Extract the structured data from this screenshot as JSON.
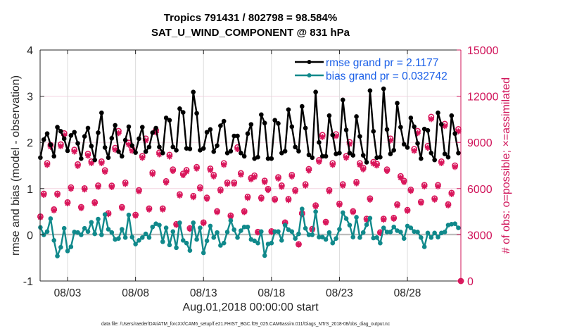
{
  "chart_data": {
    "type": "line",
    "title": "Tropics 791431 / 802798 = 98.584%",
    "subtitle": "SAT_U_WIND_COMPONENT @ 831 hPa",
    "xlabel": "Aug.01,2018 00:00:00 start",
    "ylabel": "rmse and bias (model - observation)",
    "ylabel_right": "# of obs: o=possible; ×=assimilated",
    "ylim": [
      -1,
      4
    ],
    "ylim_right": [
      0,
      15000
    ],
    "xlim_days": [
      0,
      31
    ],
    "time_start": "Aug.01,2018 00:00:00",
    "time_step_hours": 6,
    "grid": true,
    "zero_line": 0,
    "legend_position": "top-right",
    "yticks": [
      "-1",
      "0",
      "1",
      "2",
      "3",
      "4"
    ],
    "yticks_right": [
      "0",
      "3000",
      "6000",
      "9000",
      "12000",
      "15000"
    ],
    "xticks": [
      {
        "label": "08/03",
        "day": 2
      },
      {
        "label": "08/08",
        "day": 7
      },
      {
        "label": "08/13",
        "day": 12
      },
      {
        "label": "08/18",
        "day": 17
      },
      {
        "label": "08/23",
        "day": 22
      },
      {
        "label": "08/28",
        "day": 27
      }
    ],
    "series": [
      {
        "name": "rmse",
        "legend": "rmse grand pr = 2.1177",
        "axis": "left",
        "color": "#000000",
        "marker": "filled-circle",
        "values": [
          1.67,
          2.06,
          2.19,
          1.95,
          1.7,
          2.33,
          2.24,
          2.08,
          1.82,
          2.15,
          2.22,
          1.98,
          1.65,
          2.13,
          2.31,
          1.92,
          1.62,
          2.21,
          2.64,
          1.89,
          1.67,
          2.09,
          2.37,
          1.8,
          1.7,
          2.05,
          2.34,
          1.93,
          1.78,
          2.08,
          2.33,
          1.8,
          1.9,
          2.21,
          2.31,
          1.9,
          1.77,
          2.53,
          2.48,
          1.9,
          1.83,
          2.73,
          2.65,
          1.87,
          1.86,
          3.09,
          2.63,
          1.83,
          1.87,
          2.22,
          2.28,
          1.8,
          1.93,
          2.36,
          2.46,
          1.77,
          1.81,
          2.14,
          2.14,
          1.77,
          1.7,
          2.19,
          2.39,
          1.65,
          1.68,
          2.6,
          2.42,
          1.65,
          1.65,
          2.48,
          2.41,
          1.77,
          1.81,
          2.71,
          2.34,
          1.9,
          1.81,
          2.78,
          2.31,
          1.73,
          1.67,
          3.09,
          2.0,
          1.7,
          1.7,
          2.58,
          2.16,
          1.75,
          1.77,
          2.92,
          2.27,
          1.77,
          1.72,
          2.56,
          2.13,
          1.72,
          1.57,
          3.12,
          2.24,
          1.67,
          1.68,
          3.16,
          2.28,
          1.75,
          1.83,
          2.85,
          2.33,
          1.96,
          1.89,
          2.53,
          2.34,
          1.98,
          1.65,
          2.29,
          2.26,
          1.77,
          1.62,
          2.64,
          2.39,
          1.75,
          1.68,
          2.58,
          2.19,
          1.77
        ]
      },
      {
        "name": "bias",
        "legend": "bias grand pr = 0.032742",
        "axis": "left",
        "color": "#10898b",
        "marker": "filled-circle",
        "values": [
          0.16,
          0.0,
          0.07,
          0.35,
          -0.12,
          -0.46,
          -0.27,
          0.14,
          -0.35,
          -0.26,
          0.06,
          0.05,
          0.0,
          0.14,
          0.07,
          0.27,
          0.02,
          0.34,
          0.0,
          0.44,
          0.12,
          0.05,
          -0.1,
          -0.08,
          0.12,
          -0.06,
          0.43,
          -0.05,
          -0.2,
          -0.12,
          -0.06,
          0.02,
          -0.06,
          0.17,
          0.24,
          0.21,
          -0.15,
          0.15,
          -0.22,
          0.07,
          -0.28,
          0.26,
          -0.12,
          -0.18,
          -0.34,
          0.26,
          -0.1,
          0.15,
          -0.39,
          -0.13,
          0.19,
          -0.06,
          0.05,
          -0.23,
          -0.18,
          0.06,
          0.31,
          0.11,
          -0.06,
          0.09,
          0.17,
          0.17,
          -0.1,
          -0.13,
          -0.18,
          0.07,
          -0.45,
          -0.2,
          -0.18,
          0.07,
          0.07,
          -0.12,
          0.21,
          0.11,
          0.07,
          -0.08,
          0.02,
          0.56,
          0.14,
          0.0,
          0.0,
          0.5,
          -0.05,
          -0.05,
          -0.1,
          0.05,
          -0.18,
          -0.08,
          0.12,
          0.48,
          0.35,
          0.21,
          -0.05,
          0.38,
          -0.06,
          0.05,
          0.22,
          0.36,
          -0.07,
          -0.06,
          -0.18,
          0.15,
          0.06,
          0.06,
          0.17,
          0.09,
          0.06,
          -0.08,
          0.19,
          0.15,
          0.07,
          0.06,
          -0.06,
          -0.26,
          0.04,
          -0.06,
          0.04,
          -0.05,
          0.04,
          0.06,
          0.21,
          0.23,
          0.24,
          0.15
        ]
      },
      {
        "name": "obs possible",
        "axis": "right",
        "color": "#d9165b",
        "marker": "o",
        "values": [
          4190,
          5670,
          7650,
          8830,
          4650,
          5670,
          8870,
          9590,
          5110,
          6080,
          8520,
          7580,
          4800,
          6020,
          8260,
          7760,
          5110,
          6200,
          7760,
          7190,
          4400,
          6190,
          8640,
          9740,
          4800,
          6390,
          8980,
          8570,
          4300,
          5900,
          8110,
          9250,
          4710,
          7040,
          9790,
          8340,
          4710,
          6480,
          8190,
          7240,
          3690,
          5630,
          6970,
          7200,
          3430,
          5520,
          7400,
          6080,
          3800,
          5410,
          7300,
          6890,
          4530,
          5930,
          7650,
          6390,
          4250,
          6390,
          8680,
          7000,
          4530,
          5470,
          6690,
          6850,
          3190,
          5410,
          6510,
          5980,
          3230,
          5320,
          6740,
          6200,
          3800,
          5320,
          6890,
          5900,
          2390,
          4400,
          6280,
          7270,
          3380,
          4910,
          7850,
          9480,
          3840,
          5900,
          7650,
          9530,
          5020,
          6280,
          8110,
          9020,
          4530,
          6430,
          7650,
          7350,
          4040,
          5360,
          7730,
          7610,
          3160,
          4040,
          7240,
          9250,
          4100,
          4980,
          6810,
          6510,
          4610,
          5930,
          8570,
          9740,
          5140,
          6230,
          8770,
          10660,
          5360,
          6230,
          7760,
          10200,
          4980,
          5720,
          7500,
          9860,
          0
        ]
      },
      {
        "name": "obs assimilated",
        "axis": "right",
        "color": "#d9165b",
        "marker": "×",
        "values": [
          4130,
          5590,
          7540,
          8710,
          4580,
          5590,
          8750,
          9460,
          5040,
          5990,
          8400,
          7470,
          4730,
          5940,
          8140,
          7650,
          5040,
          6110,
          7650,
          7090,
          4340,
          6100,
          8520,
          9600,
          4730,
          6300,
          8850,
          8450,
          4240,
          5820,
          8000,
          9120,
          4640,
          6940,
          9650,
          8220,
          4640,
          6390,
          8080,
          7140,
          3640,
          5550,
          6870,
          7100,
          3380,
          5440,
          7300,
          5990,
          3750,
          5330,
          7200,
          6790,
          4470,
          5850,
          7540,
          6300,
          4190,
          6300,
          8560,
          6900,
          4470,
          5390,
          6600,
          6750,
          3150,
          5330,
          6420,
          5900,
          3180,
          5250,
          6650,
          6110,
          3750,
          5250,
          6790,
          5820,
          2360,
          4340,
          6190,
          7170,
          3330,
          4840,
          7740,
          9350,
          3790,
          5820,
          7540,
          9400,
          4950,
          6190,
          8000,
          8890,
          4470,
          6340,
          7540,
          7250,
          3980,
          5280,
          7620,
          7500,
          3120,
          3980,
          7140,
          9120,
          4040,
          4910,
          6710,
          6420,
          4550,
          5850,
          8450,
          9600,
          5070,
          6140,
          8650,
          10510,
          5280,
          6140,
          7650,
          10060,
          4910,
          5640,
          7400,
          9720,
          0
        ]
      }
    ]
  },
  "footer": "data file: /Users/raeder/DAI/ATM_forcXX/CAM6_setup/f.e21.FHIST_BGC.f09_025.CAM6assim.011/Diags_NTrS_2018-08/obs_diag_output.nc"
}
